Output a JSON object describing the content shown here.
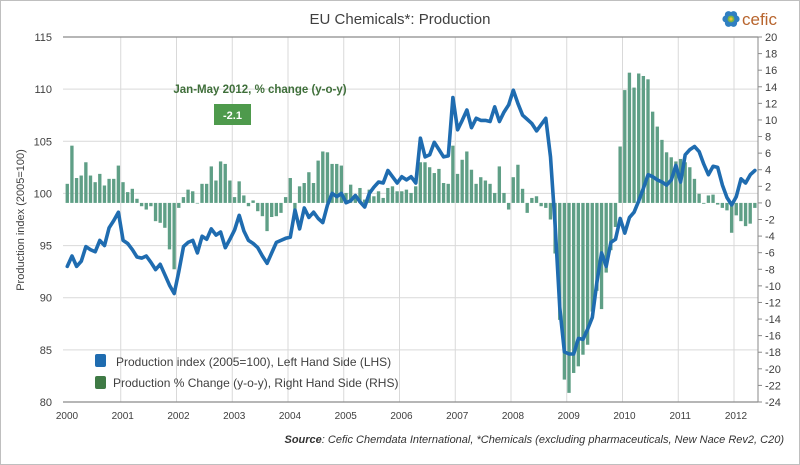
{
  "logo": {
    "text": "cefic",
    "color": "#b8652e",
    "flower_colors": [
      "#2f7fc1",
      "#7ab648",
      "#f2c230"
    ]
  },
  "annotation": {
    "title": "Jan-May 2012, % change (y-o-y)",
    "value": "-2.1",
    "box_color": "#4e9a4c"
  },
  "source": {
    "label": "Source",
    "text": ": Cefic Chemdata International, *Chemicals (excluding pharmaceuticals, New Nace Rev2, C20)"
  },
  "chart_data": {
    "type": "bar+line",
    "title": "EU Chemicals*: Production",
    "ylabel": "Production index (2005=100)",
    "y2label": "",
    "xlabel": "",
    "x_ticks": [
      "2000",
      "2001",
      "2002",
      "2003",
      "2004",
      "2005",
      "2006",
      "2007",
      "2008",
      "2009",
      "2010",
      "2011",
      "2012"
    ],
    "ylim": [
      80,
      115
    ],
    "y_ticks": [
      "80",
      "85",
      "90",
      "95",
      "100",
      "105",
      "110",
      "115"
    ],
    "y2lim": [
      -24,
      20
    ],
    "y2_ticks": [
      "20",
      "18",
      "16",
      "14",
      "12",
      "10",
      "8",
      "6",
      "4",
      "2",
      "0",
      "-2",
      "-4",
      "-6",
      "-8",
      "-10",
      "-12",
      "-14",
      "-16",
      "-18",
      "-20",
      "-22",
      "-24"
    ],
    "x_start": "2000-01",
    "x_end": "2012-05",
    "frequency": "monthly",
    "grid": true,
    "legend_position": "bottom-left",
    "series": [
      {
        "name": "Production index (2005=100),  Left Hand Side (LHS)",
        "type": "line",
        "axis": "left",
        "color": "#1f6cb0",
        "values": [
          93.0,
          94.0,
          93.0,
          93.5,
          94.9,
          94.6,
          94.4,
          95.5,
          95.0,
          96.7,
          97.4,
          98.2,
          95.5,
          95.2,
          94.6,
          93.9,
          93.8,
          94.0,
          93.4,
          92.7,
          93.2,
          92.2,
          91.2,
          90.4,
          92.5,
          94.9,
          95.3,
          95.5,
          94.3,
          95.9,
          95.6,
          96.6,
          96.0,
          96.3,
          94.8,
          95.6,
          96.5,
          97.9,
          96.4,
          95.5,
          95.2,
          94.8,
          94.0,
          93.3,
          94.3,
          95.3,
          95.5,
          95.7,
          95.8,
          98.4,
          96.6,
          98.6,
          97.7,
          98.2,
          97.6,
          97.2,
          98.9,
          100.0,
          99.7,
          100.0,
          99.1,
          99.3,
          99.8,
          99.2,
          98.7,
          100.0,
          100.6,
          101.1,
          101.0,
          102.2,
          101.6,
          101.0,
          101.6,
          101.3,
          101.6,
          101.0,
          105.3,
          103.5,
          103.7,
          104.9,
          104.2,
          103.5,
          103.6,
          109.2,
          106.1,
          107.0,
          108.0,
          106.3,
          107.2,
          107.0,
          107.0,
          106.9,
          108.3,
          106.9,
          107.8,
          108.5,
          109.9,
          108.6,
          107.5,
          107.1,
          106.7,
          106.0,
          106.6,
          107.2,
          103.5,
          97.0,
          89.0,
          84.8,
          84.6,
          84.6,
          86.1,
          86.0,
          87.0,
          88.1,
          91.5,
          94.3,
          93.0,
          95.3,
          95.6,
          97.6,
          96.2,
          97.7,
          98.2,
          99.3,
          100.5,
          101.8,
          101.6,
          101.3,
          101.1,
          100.8,
          101.3,
          102.7,
          101.1,
          103.7,
          104.2,
          104.5,
          104.0,
          102.8,
          101.8,
          102.6,
          102.5,
          100.8,
          99.6,
          98.9,
          99.7,
          101.4,
          101.0,
          101.8,
          102.2
        ]
      },
      {
        "name": "Production  % Change (y-o-y), Right Hand Side (RHS)",
        "type": "bar",
        "axis": "right",
        "color": "#5f9f86",
        "legend_color": "#3f7a45",
        "values": [
          2.3,
          6.9,
          3.0,
          3.3,
          4.9,
          3.3,
          2.5,
          3.5,
          2.1,
          2.9,
          2.9,
          4.5,
          2.5,
          1.3,
          1.7,
          0.5,
          -0.4,
          -0.8,
          -0.4,
          -2.2,
          -2.4,
          -3.0,
          -5.6,
          -8.0,
          -0.6,
          0.7,
          1.6,
          1.4,
          0.0,
          2.3,
          2.3,
          4.4,
          2.7,
          5.0,
          4.7,
          2.7,
          0.7,
          2.6,
          0.9,
          -0.4,
          0.3,
          -1.0,
          -1.6,
          -3.4,
          -1.7,
          -1.6,
          -1.2,
          0.7,
          3.0,
          -0.8,
          2.0,
          2.4,
          3.7,
          2.4,
          5.1,
          6.2,
          6.1,
          4.7,
          4.7,
          4.5,
          1.2,
          2.2,
          1.0,
          1.8,
          0.4,
          1.6,
          0.8,
          1.4,
          0.6,
          1.8,
          2.0,
          1.4,
          1.4,
          1.6,
          1.2,
          2.0,
          4.9,
          4.9,
          4.3,
          3.6,
          4.1,
          2.4,
          2.3,
          6.9,
          3.5,
          5.2,
          6.2,
          4.0,
          2.3,
          3.1,
          2.7,
          2.3,
          1.2,
          4.4,
          1.2,
          -0.8,
          3.1,
          4.6,
          1.7,
          -1.2,
          0.6,
          0.8,
          -0.4,
          -0.6,
          -2.0,
          -6.1,
          -14.1,
          -21.3,
          -22.9,
          -20.5,
          -19.7,
          -18.3,
          -17.1,
          -13.1,
          -10.6,
          -12.8,
          -8.4,
          -5.7,
          -2.9,
          6.8,
          13.6,
          15.7,
          13.9,
          15.6,
          15.3,
          14.9,
          11.0,
          9.2,
          7.6,
          6.1,
          5.5,
          5.0,
          5.3,
          4.9,
          4.3,
          2.9,
          1.1,
          -0.1,
          0.9,
          1.0,
          -0.2,
          -0.6,
          -0.9,
          -3.6,
          -1.5,
          -2.2,
          -2.8,
          -2.5,
          -0.6
        ]
      }
    ]
  }
}
